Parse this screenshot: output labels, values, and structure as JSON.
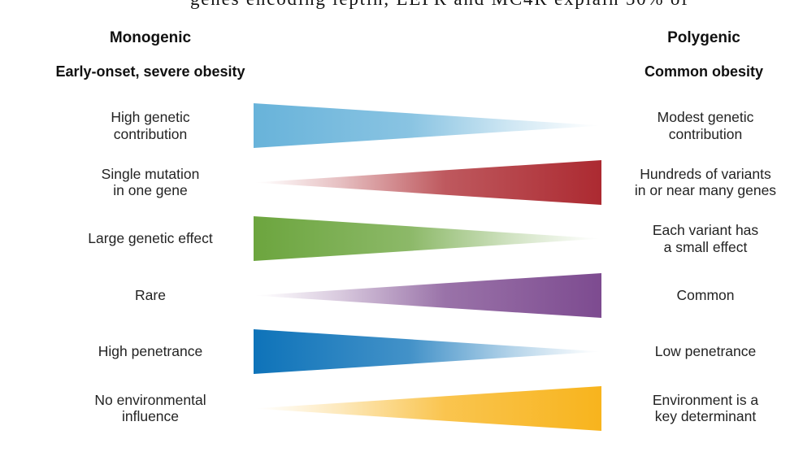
{
  "page": {
    "top_clipped_text": "genes encoding leptin, LEPR and MC4R explain 50% of",
    "background": "#ffffff"
  },
  "columns": {
    "left": {
      "title": "Monogenic",
      "subtitle": "Early-onset, severe obesity"
    },
    "right": {
      "title": "Polygenic",
      "subtitle": "Common obesity"
    }
  },
  "rows": [
    {
      "name": "genetic-contribution",
      "left_label": "High genetic\ncontribution",
      "right_label": "Modest genetic\ncontribution",
      "color": "#68b3da",
      "thick": "left"
    },
    {
      "name": "mutation-count",
      "left_label": "Single mutation\nin one gene",
      "right_label": "Hundreds of variants\nin or near many genes",
      "color": "#ac2a31",
      "thick": "right"
    },
    {
      "name": "effect-size",
      "left_label": "Large genetic effect",
      "right_label": "Each variant has\na small effect",
      "color": "#6ca53e",
      "thick": "left"
    },
    {
      "name": "frequency",
      "left_label": "Rare",
      "right_label": "Common",
      "color": "#7d4b90",
      "thick": "right"
    },
    {
      "name": "penetrance",
      "left_label": "High penetrance",
      "right_label": "Low penetrance",
      "color": "#0e73b9",
      "thick": "left"
    },
    {
      "name": "environment",
      "left_label": "No environmental\ninfluence",
      "right_label": "Environment is a\nkey determinant",
      "color": "#f8b41d",
      "thick": "right"
    }
  ]
}
